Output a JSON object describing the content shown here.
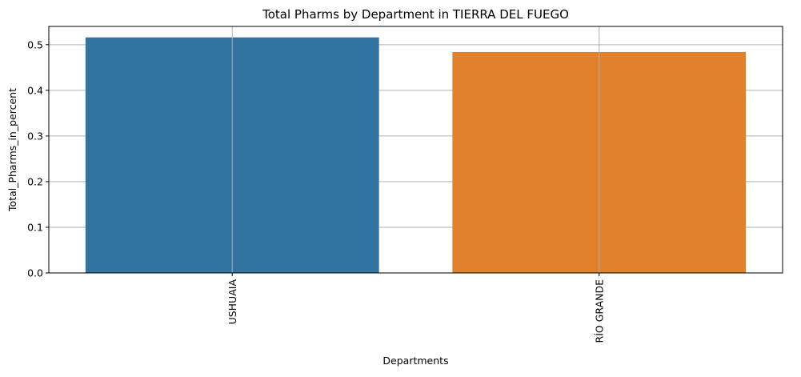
{
  "chart_data": {
    "type": "bar",
    "title": "Total Pharms by Department in TIERRA DEL FUEGO",
    "xlabel": "Departments",
    "ylabel": "Total_Pharms_in_percent",
    "categories": [
      "USHUAIA",
      "RÍO GRANDE"
    ],
    "values": [
      0.516,
      0.484
    ],
    "colors": [
      "#3274a1",
      "#e1812c"
    ],
    "ylim": [
      0,
      0.54
    ],
    "yticks": [
      0.0,
      0.1,
      0.2,
      0.3,
      0.4,
      0.5
    ],
    "ytick_labels": [
      "0.0",
      "0.1",
      "0.2",
      "0.3",
      "0.4",
      "0.5"
    ],
    "grid": true,
    "xtick_rotation": "vertical"
  }
}
